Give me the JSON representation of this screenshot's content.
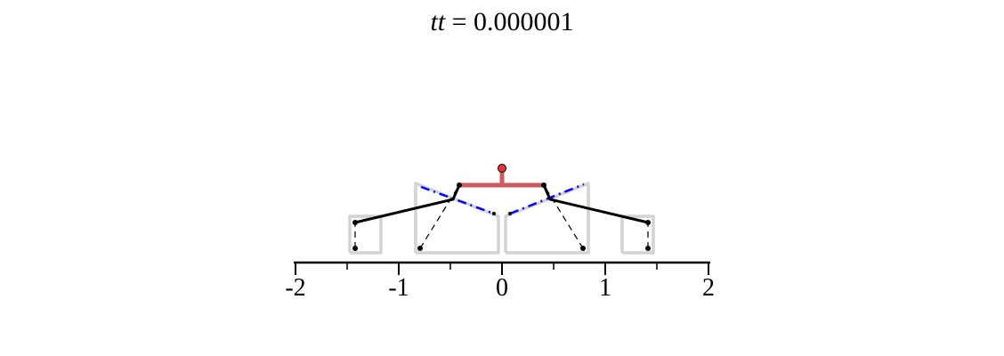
{
  "title": {
    "variable": "tt",
    "equals": " = ",
    "value": "0.000001"
  },
  "axis": {
    "ticks": [
      {
        "value": -2,
        "label": "-2"
      },
      {
        "value": -1,
        "label": "-1"
      },
      {
        "value": 0,
        "label": "0"
      },
      {
        "value": 1,
        "label": "1"
      },
      {
        "value": 2,
        "label": "2"
      }
    ],
    "minor_ticks": [
      -1.5,
      -0.5,
      0.5,
      1.5
    ]
  },
  "colors": {
    "background": "#ffffff",
    "platform": "#cd5c5c",
    "joint": "#e8323c",
    "outline": "#d3d3d3",
    "leg": "#000000",
    "dashdot": "#0000ff"
  }
}
